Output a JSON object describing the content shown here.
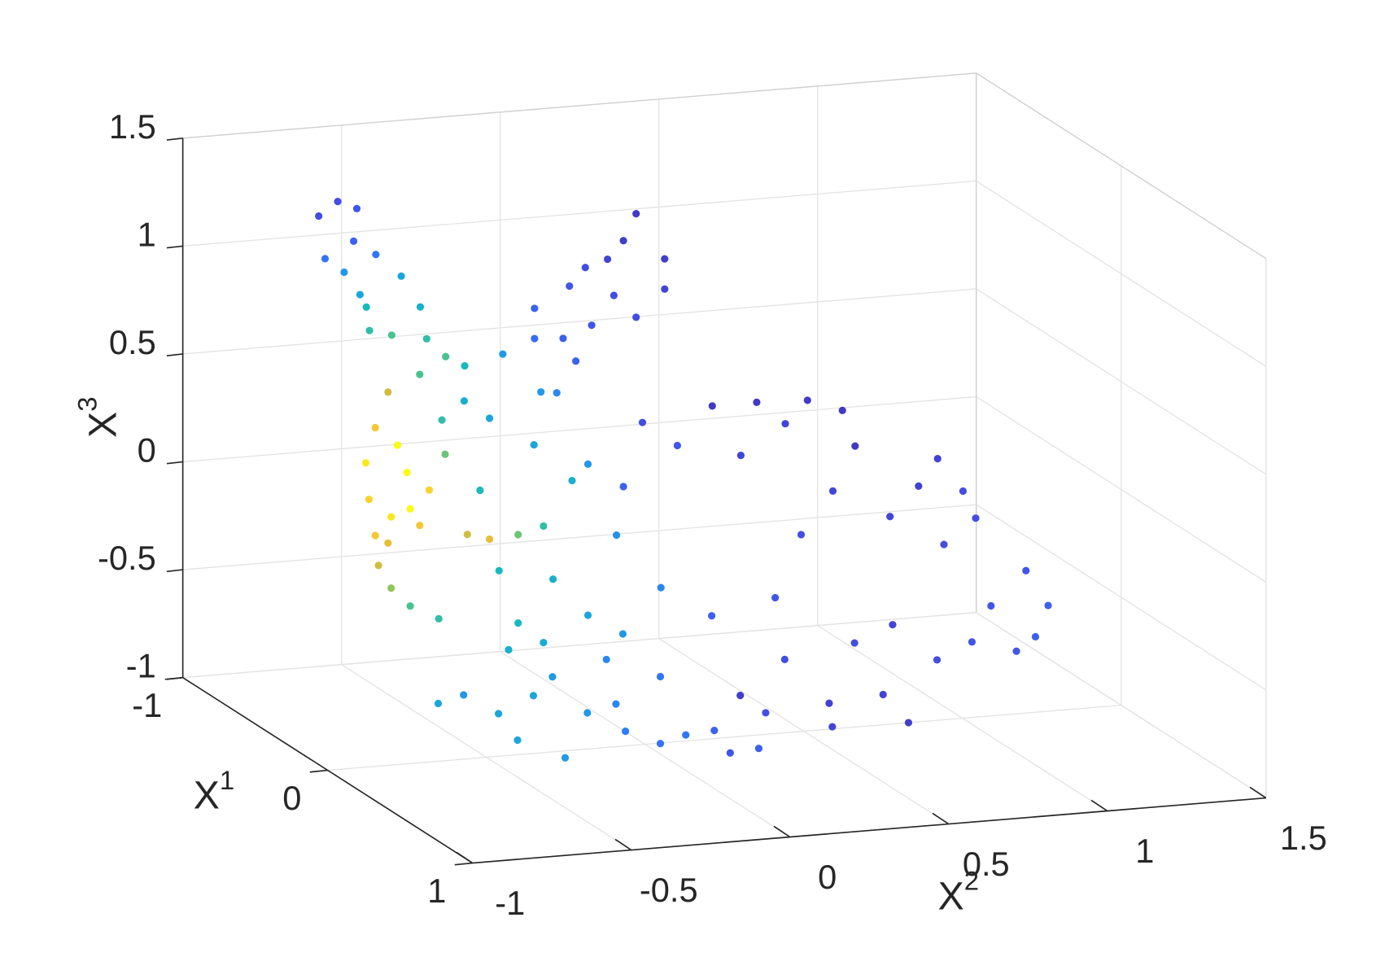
{
  "chart_data": {
    "type": "scatter3d",
    "xlabel": {
      "text": "X",
      "superscript": "1"
    },
    "ylabel": {
      "text": "X",
      "superscript": "2"
    },
    "zlabel": {
      "text": "X",
      "superscript": "3"
    },
    "xlim": [
      -1,
      1
    ],
    "xticks": [
      -1,
      0,
      1
    ],
    "ylim": [
      -1,
      1.5
    ],
    "yticks": [
      -1,
      -0.5,
      0,
      0.5,
      1,
      1.5
    ],
    "zlim": [
      -1,
      1.5
    ],
    "zticks": [
      -1,
      -0.5,
      0,
      0.5,
      1,
      1.5
    ],
    "grid": true,
    "colormap": [
      "#3e26a8",
      "#4352e7",
      "#2f7ef7",
      "#1ca3e0",
      "#16b8bf",
      "#4cc38e",
      "#9dc654",
      "#e0ba3a",
      "#fcce2e",
      "#f9fb15"
    ],
    "x": [
      -0.5,
      -0.5,
      -0.5,
      -0.5,
      -0.5,
      -0.5,
      -0.5,
      -0.5,
      -0.5,
      -0.5,
      -0.5,
      -0.5,
      -0.5,
      -0.5,
      -0.5,
      -0.5,
      -0.5,
      -0.5,
      -0.5,
      -0.5,
      -0.5,
      -0.5,
      -0.5,
      -0.5,
      -0.5,
      -0.5,
      -0.5,
      -0.5,
      -0.5,
      -0.5,
      -0.5,
      -0.5,
      -0.5,
      0,
      0,
      0,
      0,
      0,
      0,
      0,
      0,
      0,
      0,
      0,
      0,
      0,
      0,
      0,
      0,
      0,
      0,
      0,
      0,
      0,
      0,
      0,
      0,
      0,
      0,
      0,
      0,
      0,
      0,
      0,
      0,
      0,
      0,
      0,
      0,
      0,
      0,
      -0.5,
      -0.5,
      -0.5,
      -0.5,
      -0.5,
      -0.5,
      -0.5,
      -0.5,
      -0.5,
      -0.5,
      -0.5,
      -0.5,
      -0.5,
      -0.5,
      -0.5,
      -0.5,
      -0.5,
      -0.5,
      0,
      0,
      0,
      0,
      0,
      0,
      0,
      0,
      0,
      0,
      0,
      0,
      0,
      0,
      0,
      0,
      0,
      0,
      0.5,
      0.5,
      0.5,
      0.5,
      0.5,
      0.5,
      0.5,
      0.5,
      0.5,
      0.5,
      0.5,
      0.5,
      0.5,
      0.5,
      0.5,
      0.5,
      0.5
    ],
    "y": [
      -0.8,
      -0.74,
      -0.68,
      -0.78,
      -0.69,
      -0.72,
      -0.67,
      -0.62,
      -0.54,
      -0.65,
      -0.57,
      -0.48,
      -0.46,
      -0.64,
      -0.4,
      -0.34,
      0.2,
      0.16,
      0.11,
      0.29,
      0.04,
      -0.01,
      0.13,
      0.29,
      -0.12,
      0.06,
      0.2,
      -0.03,
      0.01,
      -0.12,
      -0.22,
      -0.1,
      -0.05,
      -0.88,
      -0.85,
      -0.81,
      -0.87,
      -0.85,
      -0.84,
      -0.8,
      -0.74,
      -0.65,
      -0.78,
      -0.75,
      -0.74,
      -0.8,
      -0.71,
      -0.81,
      -0.68,
      -0.63,
      -0.64,
      -0.71,
      -0.56,
      -0.49,
      -0.4,
      -0.32,
      -0.52,
      -0.57,
      -0.49,
      -0.46,
      -0.4,
      -0.29,
      -0.18,
      -0.23,
      -0.35,
      -0.18,
      -0.43,
      -0.32,
      -0.07,
      0.05,
      -0.09,
      0.44,
      0.58,
      0.74,
      0.85,
      0.89,
      0.67,
      0.22,
      0.33,
      0.53,
      1.15,
      1.09,
      1.23,
      1.27,
      1.0,
      0.82,
      1.17,
      0.72,
      0.16,
      1.27,
      1.2,
      1.23,
      1.09,
      1.17,
      1.03,
      0.92,
      0.75,
      0.58,
      0.83,
      0.59,
      0.38,
      0.3,
      0.44,
      0.66,
      0.78,
      0.41,
      0.21,
      0.13,
      -0.1,
      -0.18,
      -0.29,
      -0.41,
      -0.48,
      -0.63,
      -0.69,
      -0.8,
      -0.88,
      -0.58,
      -0.32,
      -0.01,
      0.04,
      -0.52,
      -0.35,
      -0.18
    ],
    "z": [
      1.33,
      1.39,
      1.35,
      1.13,
      1.2,
      1.06,
      0.95,
      1.13,
      1.02,
      0.89,
      0.75,
      0.87,
      0.72,
      0.78,
      0.63,
      0.58,
      1.22,
      1.1,
      1.02,
      1.0,
      0.99,
      0.91,
      0.85,
      0.86,
      0.82,
      0.72,
      0.74,
      0.67,
      0.56,
      0.68,
      0.62,
      0.43,
      0.42,
      0.41,
      0.57,
      0.73,
      0.24,
      0.07,
      -0.07,
      -0.18,
      -0.27,
      -0.34,
      0.48,
      0.35,
      0.18,
      0.15,
      0.1,
      0.03,
      0.26,
      0.42,
      0.58,
      0.8,
      0.04,
      0.01,
      0.02,
      0.05,
      0.24,
      0.66,
      0.57,
      -0.14,
      -0.39,
      -0.2,
      -0.38,
      0.25,
      0.43,
      0.32,
      -0.51,
      -0.49,
      -0.48,
      -0.28,
      -0.02,
      0.3,
      0.3,
      0.29,
      0.23,
      0.06,
      0.19,
      0.25,
      0.13,
      0.06,
      -0.03,
      -0.15,
      -0.19,
      -0.32,
      -0.28,
      -0.14,
      -0.43,
      -0.33,
      -0.04,
      -0.51,
      -0.34,
      -0.65,
      -0.49,
      -0.71,
      -0.65,
      -0.72,
      -0.86,
      -0.88,
      -1.0,
      -0.99,
      -0.9,
      -0.81,
      -0.66,
      -0.61,
      -0.54,
      -0.37,
      -0.43,
      -0.82,
      -0.73,
      -0.76,
      -0.69,
      -0.59,
      -0.79,
      -0.69,
      -0.56,
      -0.46,
      -0.49,
      -0.49,
      -0.56,
      -0.72,
      -0.83,
      -0.41,
      -0.35,
      -0.45
    ],
    "c": [
      0.1,
      0.1,
      0.12,
      0.2,
      0.15,
      0.3,
      0.35,
      0.2,
      0.35,
      0.45,
      0.55,
      0.4,
      0.5,
      0.5,
      0.55,
      0.45,
      0.05,
      0.06,
      0.08,
      0.06,
      0.1,
      0.12,
      0.1,
      0.08,
      0.15,
      0.12,
      0.1,
      0.15,
      0.15,
      0.18,
      0.3,
      0.3,
      0.25,
      0.95,
      0.85,
      0.75,
      0.9,
      0.85,
      0.75,
      0.65,
      0.55,
      0.5,
      1.0,
      1.0,
      1.0,
      0.95,
      0.85,
      0.8,
      0.9,
      0.6,
      0.5,
      0.55,
      0.75,
      0.8,
      0.6,
      0.5,
      0.45,
      0.4,
      0.35,
      0.45,
      0.45,
      0.4,
      0.35,
      0.4,
      0.35,
      0.3,
      0.4,
      0.38,
      0.3,
      0.25,
      0.28,
      0.05,
      0.05,
      0.05,
      0.05,
      0.05,
      0.08,
      0.1,
      0.12,
      0.08,
      0.07,
      0.07,
      0.1,
      0.1,
      0.08,
      0.08,
      0.1,
      0.1,
      0.15,
      0.15,
      0.12,
      0.15,
      0.12,
      0.12,
      0.12,
      0.1,
      0.08,
      0.07,
      0.06,
      0.08,
      0.1,
      0.06,
      0.1,
      0.1,
      0.08,
      0.12,
      0.15,
      0.15,
      0.2,
      0.2,
      0.22,
      0.3,
      0.3,
      0.35,
      0.35,
      0.3,
      0.35,
      0.35,
      0.25,
      0.15,
      0.12,
      0.3,
      0.25,
      0.2
    ]
  }
}
